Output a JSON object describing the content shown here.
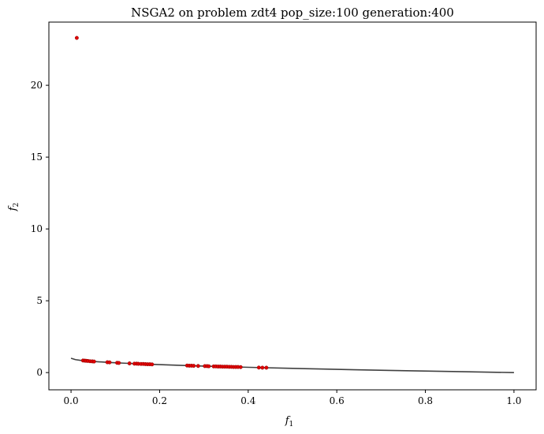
{
  "chart_data": {
    "type": "scatter",
    "title": "NSGA2 on problem zdt4 pop_size:100 generation:400",
    "xlabel": "f",
    "xlabel_sub": "1",
    "ylabel": "f",
    "ylabel_sub": "2",
    "xlim": [
      -0.05,
      1.05
    ],
    "ylim": [
      -1.2,
      24.4
    ],
    "xticks": [
      0.0,
      0.2,
      0.4,
      0.6,
      0.8,
      1.0
    ],
    "xtick_labels": [
      "0.0",
      "0.2",
      "0.4",
      "0.6",
      "0.8",
      "1.0"
    ],
    "yticks": [
      0,
      5,
      10,
      15,
      20
    ],
    "ytick_labels": [
      "0",
      "5",
      "10",
      "15",
      "20"
    ],
    "grid": false,
    "legend": "none",
    "pareto_front": {
      "color": "#404040",
      "points": [
        [
          0.0,
          1.0
        ],
        [
          0.01,
          0.9
        ],
        [
          0.02,
          0.859
        ],
        [
          0.04,
          0.8
        ],
        [
          0.06,
          0.755
        ],
        [
          0.09,
          0.7
        ],
        [
          0.12,
          0.654
        ],
        [
          0.16,
          0.6
        ],
        [
          0.2,
          0.553
        ],
        [
          0.25,
          0.5
        ],
        [
          0.3,
          0.452
        ],
        [
          0.36,
          0.4
        ],
        [
          0.42,
          0.352
        ],
        [
          0.49,
          0.3
        ],
        [
          0.56,
          0.252
        ],
        [
          0.64,
          0.2
        ],
        [
          0.72,
          0.151
        ],
        [
          0.81,
          0.1
        ],
        [
          0.9,
          0.051
        ],
        [
          1.0,
          0.0
        ]
      ]
    },
    "population": {
      "color": "#e00000",
      "edge_color": "#8b0000",
      "points": [
        [
          0.013,
          23.3
        ],
        [
          0.027,
          0.84
        ],
        [
          0.031,
          0.83
        ],
        [
          0.034,
          0.82
        ],
        [
          0.038,
          0.81
        ],
        [
          0.043,
          0.79
        ],
        [
          0.048,
          0.78
        ],
        [
          0.052,
          0.77
        ],
        [
          0.082,
          0.72
        ],
        [
          0.087,
          0.71
        ],
        [
          0.104,
          0.68
        ],
        [
          0.108,
          0.67
        ],
        [
          0.132,
          0.64
        ],
        [
          0.143,
          0.62
        ],
        [
          0.148,
          0.62
        ],
        [
          0.152,
          0.61
        ],
        [
          0.158,
          0.6
        ],
        [
          0.163,
          0.6
        ],
        [
          0.168,
          0.59
        ],
        [
          0.173,
          0.58
        ],
        [
          0.178,
          0.58
        ],
        [
          0.183,
          0.57
        ],
        [
          0.262,
          0.49
        ],
        [
          0.267,
          0.48
        ],
        [
          0.272,
          0.48
        ],
        [
          0.277,
          0.47
        ],
        [
          0.287,
          0.46
        ],
        [
          0.302,
          0.45
        ],
        [
          0.307,
          0.45
        ],
        [
          0.311,
          0.44
        ],
        [
          0.322,
          0.43
        ],
        [
          0.327,
          0.43
        ],
        [
          0.332,
          0.42
        ],
        [
          0.337,
          0.42
        ],
        [
          0.342,
          0.41
        ],
        [
          0.347,
          0.41
        ],
        [
          0.352,
          0.41
        ],
        [
          0.357,
          0.4
        ],
        [
          0.362,
          0.4
        ],
        [
          0.367,
          0.39
        ],
        [
          0.372,
          0.39
        ],
        [
          0.377,
          0.39
        ],
        [
          0.383,
          0.38
        ],
        [
          0.424,
          0.35
        ],
        [
          0.432,
          0.34
        ],
        [
          0.441,
          0.34
        ]
      ]
    }
  }
}
